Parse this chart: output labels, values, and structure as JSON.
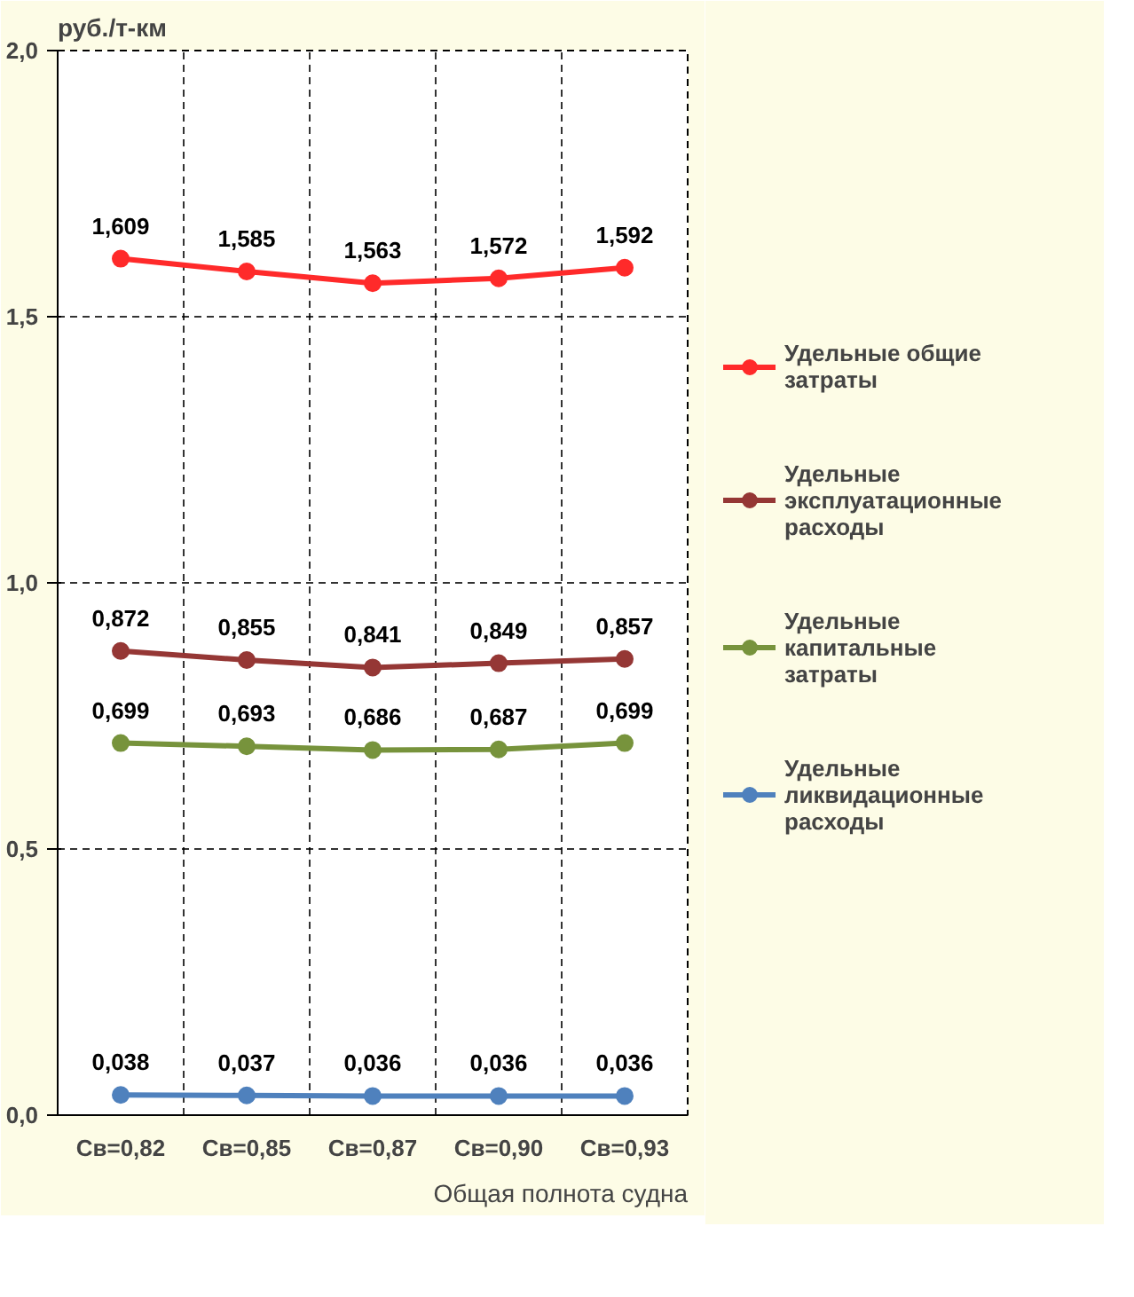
{
  "chart_data": {
    "type": "line",
    "ylabel": "руб./т-км",
    "xlabel": "Общая полнота судна",
    "categories": [
      "Св=0,82",
      "Св=0,85",
      "Св=0,87",
      "Св=0,90",
      "Св=0,93"
    ],
    "series": [
      {
        "name": "Удельные общие затраты",
        "color": "#ff2a2a",
        "values": [
          1.609,
          1.585,
          1.563,
          1.572,
          1.592
        ],
        "value_labels": [
          "1,609",
          "1,585",
          "1,563",
          "1,572",
          "1,592"
        ]
      },
      {
        "name": "Удельные эксплуатационные расходы",
        "color": "#953735",
        "values": [
          0.872,
          0.855,
          0.841,
          0.849,
          0.857
        ],
        "value_labels": [
          "0,872",
          "0,855",
          "0,841",
          "0,849",
          "0,857"
        ]
      },
      {
        "name": "Удельные капитальные затраты",
        "color": "#77933c",
        "values": [
          0.699,
          0.693,
          0.686,
          0.687,
          0.699
        ],
        "value_labels": [
          "0,699",
          "0,693",
          "0,686",
          "0,687",
          "0,699"
        ]
      },
      {
        "name": "Удельные ликвидационные расходы",
        "color": "#4f81bd",
        "values": [
          0.038,
          0.037,
          0.036,
          0.036,
          0.036
        ],
        "value_labels": [
          "0,038",
          "0,037",
          "0,036",
          "0,036",
          "0,036"
        ]
      }
    ],
    "ylim": [
      0,
      2
    ],
    "yticks": [
      {
        "value": 0,
        "label": "0,0"
      },
      {
        "value": 0.5,
        "label": "0,5"
      },
      {
        "value": 1,
        "label": "1,0"
      },
      {
        "value": 1.5,
        "label": "1,5"
      },
      {
        "value": 2,
        "label": "2,0"
      }
    ],
    "grid": true,
    "legend": "right",
    "marker": "circle",
    "line_style": "solid"
  }
}
